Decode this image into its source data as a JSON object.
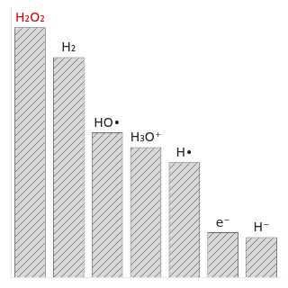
{
  "chart_data": {
    "type": "bar",
    "categories": [
      null,
      null,
      null,
      null,
      null,
      null,
      null
    ],
    "values": [
      100,
      88,
      58,
      52,
      46,
      18,
      16
    ],
    "color": "#d8d8d8",
    "annotations": [
      {
        "text": "H₂O₂",
        "color": "#cc0000"
      },
      {
        "text": "H₂",
        "color": "#222222"
      },
      {
        "text": "HO•",
        "color": "#222222"
      },
      {
        "text": "H₃O⁺",
        "color": "#222222"
      },
      {
        "text": "H•",
        "color": "#222222"
      },
      {
        "text": "e⁻",
        "color": "#222222"
      },
      {
        "text": "H⁻",
        "color": "#222222"
      }
    ],
    "ylim": [
      0,
      108
    ],
    "yticks": [],
    "grid": false,
    "tick_labels": false
  }
}
